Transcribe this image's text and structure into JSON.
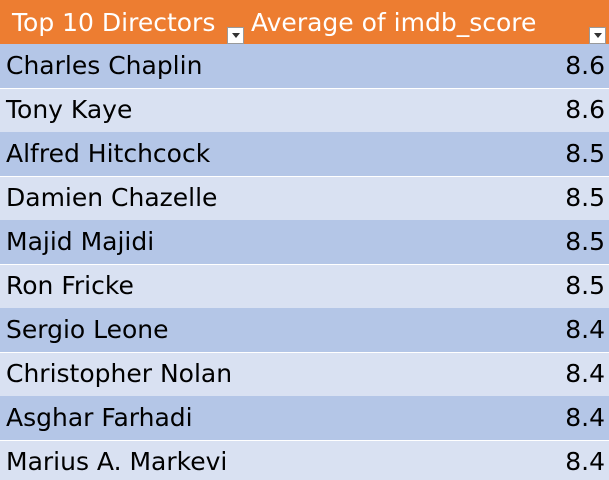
{
  "header": {
    "col1": "Top 10 Directors",
    "col2": "Average of imdb_score",
    "col1_filter_icon": "dropdown-arrow-icon",
    "col2_filter_icon": "dropdown-arrow-icon"
  },
  "rows": [
    {
      "director": "Charles Chaplin",
      "score": "8.6"
    },
    {
      "director": "Tony Kaye",
      "score": "8.6"
    },
    {
      "director": "Alfred Hitchcock",
      "score": "8.5"
    },
    {
      "director": "Damien Chazelle",
      "score": "8.5"
    },
    {
      "director": "Majid Majidi",
      "score": "8.5"
    },
    {
      "director": "Ron Fricke",
      "score": "8.5"
    },
    {
      "director": "Sergio Leone",
      "score": "8.4"
    },
    {
      "director": "Christopher Nolan",
      "score": "8.4"
    },
    {
      "director": "Asghar Farhadi",
      "score": "8.4"
    },
    {
      "director": "Marius A. Markevi",
      "score": "8.4"
    }
  ],
  "colors": {
    "header_bg": "#ed7d31",
    "header_text": "#ffffff",
    "band_dark": "#b4c6e7",
    "band_light": "#d9e1f2"
  }
}
